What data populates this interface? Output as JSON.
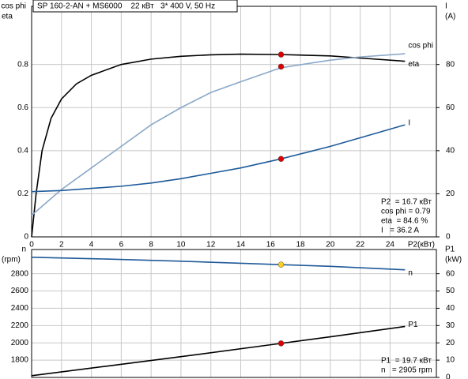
{
  "chart_data": [
    {
      "type": "line",
      "title": "SP 160-2-AN + MS6000    22 кВт   3* 400 V, 50 Hz",
      "ylabel": [
        "cos phi",
        "eta"
      ],
      "y2label": [
        "I",
        "(A)"
      ],
      "xlabel": "P2(кВт)",
      "xlim": [
        0,
        27.1
      ],
      "xticks": [
        0,
        2,
        4,
        6,
        8,
        10,
        12,
        14,
        16,
        18,
        20,
        22,
        24
      ],
      "ylim": [
        0,
        1.07
      ],
      "yticks": [
        0,
        0.2,
        0.4,
        0.6,
        0.8
      ],
      "y2lim": [
        0,
        107
      ],
      "y2ticks": [
        0,
        20,
        40,
        60,
        80
      ],
      "grid": true,
      "series": [
        {
          "name": "eta",
          "color": "#000000",
          "x": [
            0,
            0.3,
            0.7,
            1.3,
            2,
            3,
            4,
            6,
            8,
            10,
            12,
            14,
            16.7,
            20,
            22,
            25
          ],
          "values": [
            0,
            0.2,
            0.4,
            0.55,
            0.64,
            0.71,
            0.75,
            0.8,
            0.825,
            0.838,
            0.845,
            0.848,
            0.846,
            0.84,
            0.83,
            0.815
          ],
          "marker": {
            "x": 16.7,
            "value": 0.846,
            "color": "#dd0000"
          }
        },
        {
          "name": "cos phi",
          "color": "#8aa8c8",
          "x": [
            0,
            2,
            4,
            6,
            8,
            10,
            12,
            14,
            16.7,
            20,
            22,
            25
          ],
          "values": [
            0.1,
            0.22,
            0.32,
            0.42,
            0.52,
            0.6,
            0.67,
            0.72,
            0.785,
            0.82,
            0.835,
            0.85
          ],
          "marker": {
            "x": 16.7,
            "value": 0.79,
            "color": "#dd0000"
          }
        },
        {
          "name": "I",
          "color": "#1f5a99",
          "axis": "y2",
          "x": [
            0,
            2,
            4,
            6,
            8,
            10,
            12,
            14,
            16.7,
            20,
            22,
            25
          ],
          "values": [
            21,
            21.5,
            22.5,
            23.5,
            25,
            27,
            29.5,
            32,
            36.2,
            42,
            46,
            52
          ],
          "marker": {
            "x": 16.7,
            "value": 36.2,
            "color": "#dd0000"
          }
        }
      ],
      "info": [
        "P2  = 16.7 кВт",
        "cos phi = 0.79",
        "eta  = 84.6 %",
        "I   = 36.2 A"
      ]
    },
    {
      "type": "line",
      "ylabel": [
        "n",
        "(rpm)"
      ],
      "y2label": [
        "P1",
        "(kW)"
      ],
      "show_xtick_labels": false,
      "xlim": [
        0,
        27.1
      ],
      "xticks": [
        0,
        2,
        4,
        6,
        8,
        10,
        12,
        14,
        16,
        18,
        20,
        22,
        24
      ],
      "ylim": [
        1600,
        3080
      ],
      "yticks": [
        1800,
        2000,
        2200,
        2400,
        2600,
        2800
      ],
      "y2lim": [
        0,
        74
      ],
      "y2ticks": [
        0,
        10,
        20,
        30,
        40,
        50,
        60
      ],
      "grid": true,
      "series": [
        {
          "name": "n",
          "color": "#1f5a99",
          "x": [
            0,
            5,
            10,
            16.7,
            20,
            25
          ],
          "values": [
            2990,
            2970,
            2945,
            2905,
            2885,
            2845
          ],
          "marker": {
            "x": 16.7,
            "value": 2905,
            "color": "#ffd21f"
          }
        },
        {
          "name": "P1",
          "color": "#000000",
          "axis": "y2",
          "x": [
            0,
            5,
            10,
            16.7,
            20,
            25
          ],
          "values": [
            1,
            6.5,
            12,
            19.7,
            23.5,
            29.5
          ],
          "marker": {
            "x": 16.7,
            "value": 19.7,
            "color": "#dd0000"
          }
        }
      ],
      "info": [
        "P1  = 19.7 кВт",
        "n   = 2905 rpm"
      ]
    }
  ]
}
